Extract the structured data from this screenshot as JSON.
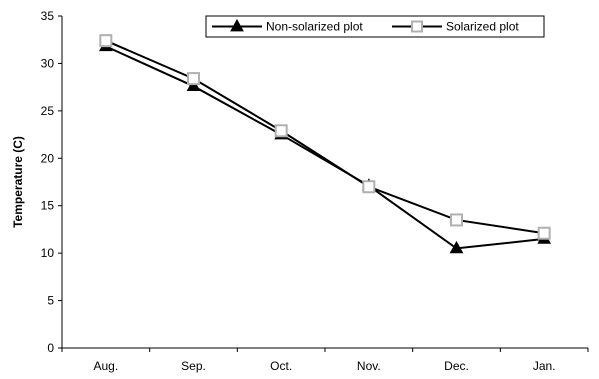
{
  "chart_data": {
    "type": "line",
    "categories": [
      "Aug.",
      "Sep.",
      "Oct.",
      "Nov.",
      "Dec.",
      "Jan."
    ],
    "series": [
      {
        "name": "Non-solarized plot",
        "marker": "filled-triangle",
        "color": "#000000",
        "values": [
          31.8,
          27.6,
          22.5,
          17.1,
          10.5,
          11.5
        ]
      },
      {
        "name": "Solarized plot",
        "marker": "open-square",
        "color": "#000000",
        "marker_color": "#b0b0b0",
        "values": [
          32.4,
          28.4,
          22.9,
          17.0,
          13.5,
          12.1
        ]
      }
    ],
    "title": "",
    "xlabel": "",
    "ylabel": "Temperature (C)",
    "ylim": [
      0,
      35
    ],
    "yticks": [
      0,
      5,
      10,
      15,
      20,
      25,
      30,
      35
    ],
    "grid": false,
    "legend_position": "top-right"
  }
}
